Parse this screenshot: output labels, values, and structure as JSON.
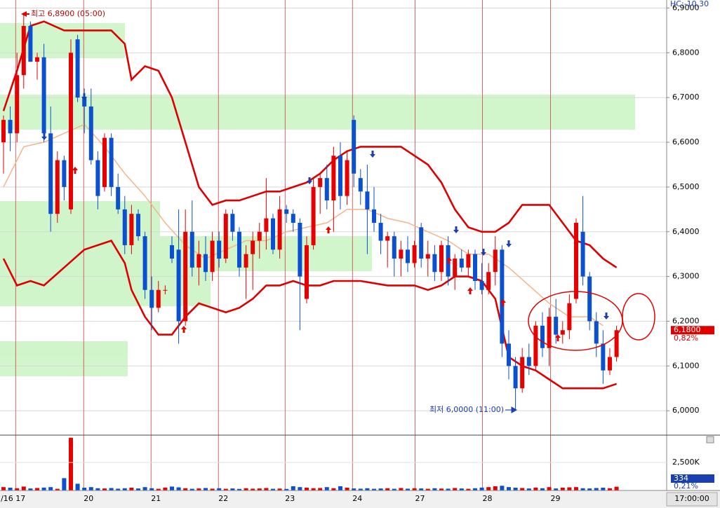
{
  "chart_data": {
    "type": "candlestick",
    "header_text": "HC:-10,30",
    "annotations": {
      "high": "최고 6,8900 (05:00)",
      "low": "최저 6,0000 (11:00)"
    },
    "last_price": {
      "value": 6.18,
      "label": "6,1800"
    },
    "last_change": "0,82%",
    "last_volume": 334,
    "volume_change": "0,21%",
    "time_label": "17:00:00",
    "ylim": [
      5.947,
      6.918
    ],
    "yticks": [
      {
        "value": 6.0,
        "label": "6,0000"
      },
      {
        "value": 6.1,
        "label": "6,1000"
      },
      {
        "value": 6.2,
        "label": "6,2000"
      },
      {
        "value": 6.3,
        "label": "6,3000"
      },
      {
        "value": 6.4,
        "label": "6,4000"
      },
      {
        "value": 6.5,
        "label": "6,5000"
      },
      {
        "value": 6.6,
        "label": "6,6000"
      },
      {
        "value": 6.7,
        "label": "6,7000"
      },
      {
        "value": 6.8,
        "label": "6,8000"
      },
      {
        "value": 6.9,
        "label": "6,9000"
      }
    ],
    "xlim": [
      -0.52,
      98.44
    ],
    "xticks": [
      {
        "value": 1.8,
        "label": "/16 17"
      },
      {
        "value": 11.9,
        "label": "20"
      },
      {
        "value": 21.9,
        "label": "21"
      },
      {
        "value": 31.9,
        "label": "22"
      },
      {
        "value": 41.8,
        "label": "23"
      },
      {
        "value": 51.8,
        "label": "24"
      },
      {
        "value": 61.1,
        "label": "27"
      },
      {
        "value": 71.1,
        "label": "28"
      },
      {
        "value": 81.2,
        "label": "29"
      }
    ],
    "up_color": "#e60000",
    "down_color": "#0a50d0",
    "open": [
      6.6,
      6.65,
      6.62,
      6.75,
      6.86,
      6.78,
      6.79,
      6.62,
      6.44,
      6.56,
      6.45,
      6.83,
      6.7,
      6.68,
      6.56,
      6.5,
      6.61,
      6.5,
      6.45,
      6.37,
      6.44,
      6.39,
      6.27,
      6.23,
      6.27,
      6.37,
      6.36,
      6.2,
      6.4,
      6.32,
      6.35,
      6.31,
      6.38,
      6.34,
      6.44,
      6.4,
      6.32,
      6.35,
      6.38,
      6.4,
      6.43,
      6.36,
      6.45,
      6.44,
      6.42,
      6.25,
      6.37,
      6.5,
      6.52,
      6.47,
      6.57,
      6.48,
      6.65,
      6.52,
      6.49,
      6.45,
      6.42,
      6.38,
      6.39,
      6.34,
      6.36,
      6.33,
      6.41,
      6.34,
      6.35,
      6.31,
      6.37,
      6.3,
      6.34,
      6.32,
      6.35,
      6.29,
      6.27,
      6.31,
      6.36,
      6.15,
      6.1,
      6.05,
      6.12,
      6.1,
      6.19,
      6.14,
      6.21,
      6.17,
      6.18,
      6.25,
      6.4,
      6.3,
      6.2,
      6.15,
      6.09,
      6.12
    ],
    "high": [
      6.66,
      6.68,
      6.8,
      6.89,
      6.87,
      6.8,
      6.82,
      6.68,
      6.58,
      6.57,
      6.83,
      6.84,
      6.72,
      6.72,
      6.58,
      6.62,
      6.62,
      6.53,
      6.48,
      6.46,
      6.45,
      6.4,
      6.3,
      6.29,
      6.28,
      6.39,
      6.45,
      6.45,
      6.47,
      6.38,
      6.39,
      6.4,
      6.4,
      6.45,
      6.45,
      6.41,
      6.37,
      6.4,
      6.42,
      6.52,
      6.44,
      6.48,
      6.46,
      6.45,
      6.43,
      6.39,
      6.52,
      6.53,
      6.55,
      6.59,
      6.6,
      6.58,
      6.66,
      6.54,
      6.55,
      6.5,
      6.44,
      6.4,
      6.4,
      6.38,
      6.39,
      6.38,
      6.42,
      6.38,
      6.37,
      6.38,
      6.39,
      6.35,
      6.36,
      6.36,
      6.36,
      6.33,
      6.33,
      6.39,
      6.37,
      6.18,
      6.12,
      6.14,
      6.15,
      6.2,
      6.22,
      6.23,
      6.25,
      6.2,
      6.26,
      6.43,
      6.48,
      6.31,
      6.22,
      6.18,
      6.14,
      6.19
    ],
    "low": [
      6.53,
      6.58,
      6.6,
      6.72,
      6.78,
      6.74,
      6.6,
      6.4,
      6.42,
      6.47,
      6.44,
      6.69,
      6.62,
      6.55,
      6.45,
      6.49,
      6.48,
      6.44,
      6.35,
      6.35,
      6.38,
      6.25,
      6.18,
      6.22,
      6.26,
      6.33,
      6.15,
      6.19,
      6.3,
      6.28,
      6.29,
      6.29,
      6.32,
      6.33,
      6.38,
      6.3,
      6.25,
      6.27,
      6.34,
      6.36,
      6.35,
      6.34,
      6.42,
      6.4,
      6.18,
      6.24,
      6.36,
      6.44,
      6.45,
      6.4,
      6.45,
      6.46,
      6.5,
      6.46,
      6.35,
      6.4,
      6.35,
      6.32,
      6.3,
      6.3,
      6.31,
      6.32,
      6.32,
      6.3,
      6.29,
      6.29,
      6.28,
      6.27,
      6.31,
      6.3,
      6.27,
      6.26,
      6.26,
      6.28,
      6.12,
      6.07,
      6.0,
      6.04,
      6.08,
      6.09,
      6.12,
      6.1,
      6.15,
      6.15,
      6.16,
      6.24,
      6.28,
      6.18,
      6.12,
      6.06,
      6.08,
      6.11
    ],
    "close": [
      6.65,
      6.62,
      6.75,
      6.86,
      6.78,
      6.79,
      6.62,
      6.44,
      6.56,
      6.5,
      6.8,
      6.7,
      6.68,
      6.56,
      6.48,
      6.61,
      6.5,
      6.45,
      6.37,
      6.44,
      6.39,
      6.27,
      6.23,
      6.27,
      6.27,
      6.34,
      6.2,
      6.4,
      6.32,
      6.35,
      6.31,
      6.38,
      6.34,
      6.44,
      6.4,
      6.32,
      6.35,
      6.38,
      6.4,
      6.43,
      6.36,
      6.45,
      6.44,
      6.42,
      6.3,
      6.37,
      6.5,
      6.52,
      6.47,
      6.57,
      6.48,
      6.56,
      6.53,
      6.49,
      6.45,
      6.42,
      6.38,
      6.39,
      6.34,
      6.36,
      6.33,
      6.37,
      6.34,
      6.35,
      6.31,
      6.37,
      6.3,
      6.34,
      6.32,
      6.35,
      6.29,
      6.27,
      6.31,
      6.36,
      6.15,
      6.1,
      6.05,
      6.12,
      6.1,
      6.19,
      6.14,
      6.21,
      6.17,
      6.18,
      6.24,
      6.42,
      6.3,
      6.2,
      6.15,
      6.09,
      6.12,
      6.18
    ],
    "volume": [
      300,
      250,
      200,
      350,
      180,
      220,
      260,
      300,
      150,
      1100,
      4700,
      600,
      250,
      300,
      200,
      180,
      220,
      160,
      200,
      250,
      180,
      300,
      200,
      150,
      260,
      350,
      280,
      200,
      150,
      180,
      220,
      160,
      200,
      150,
      180,
      140,
      200,
      160,
      180,
      220,
      150,
      170,
      140,
      380,
      300,
      250,
      200,
      220,
      300,
      200,
      380,
      250,
      180,
      160,
      200,
      150,
      180,
      200,
      150,
      220,
      160,
      200,
      180,
      150,
      200,
      170,
      160,
      220,
      180,
      150,
      200,
      260,
      300,
      380,
      420,
      300,
      250,
      220,
      180,
      260,
      200,
      300,
      180,
      250,
      280,
      300,
      200,
      180,
      220,
      250,
      200,
      334
    ],
    "vlim": [
      0,
      5000
    ],
    "vticks": [
      {
        "value": 2500,
        "label": "2,500K"
      }
    ],
    "bands": [
      {
        "color": "#dd0000",
        "x": [
          0,
          2,
          4,
          6,
          9,
          12,
          16,
          18,
          19,
          21,
          23,
          25,
          27,
          29,
          31,
          33,
          35,
          37,
          39,
          41,
          43,
          45,
          47,
          49,
          51,
          53,
          55,
          57,
          59,
          61,
          63,
          65,
          67,
          69,
          71,
          73,
          75,
          77,
          79,
          81,
          83,
          85,
          87,
          89,
          91
        ],
        "values": [
          6.67,
          6.76,
          6.86,
          6.87,
          6.85,
          6.85,
          6.85,
          6.82,
          6.74,
          6.77,
          6.76,
          6.7,
          6.6,
          6.5,
          6.46,
          6.47,
          6.47,
          6.48,
          6.49,
          6.49,
          6.5,
          6.51,
          6.53,
          6.56,
          6.58,
          6.59,
          6.59,
          6.59,
          6.59,
          6.57,
          6.55,
          6.51,
          6.45,
          6.41,
          6.4,
          6.4,
          6.42,
          6.46,
          6.46,
          6.46,
          6.42,
          6.38,
          6.37,
          6.34,
          6.32
        ]
      },
      {
        "color": "#f5b48a",
        "x": [
          0,
          3,
          6,
          9,
          12,
          15,
          18,
          21,
          24,
          27,
          30,
          33,
          36,
          39,
          42,
          45,
          48,
          51,
          54,
          57,
          60,
          63,
          66,
          69,
          72,
          75,
          78,
          81,
          84,
          87,
          89
        ],
        "values": [
          6.5,
          6.59,
          6.6,
          6.62,
          6.64,
          6.59,
          6.53,
          6.48,
          6.42,
          6.37,
          6.34,
          6.36,
          6.38,
          6.38,
          6.4,
          6.41,
          6.42,
          6.45,
          6.45,
          6.43,
          6.42,
          6.4,
          6.38,
          6.35,
          6.35,
          6.32,
          6.28,
          6.24,
          6.21,
          6.21,
          6.19
        ]
      },
      {
        "color": "#dd0000",
        "x": [
          0,
          2,
          4,
          6,
          9,
          12,
          16,
          18,
          19,
          21,
          23,
          25,
          27,
          29,
          31,
          33,
          35,
          37,
          39,
          41,
          43,
          45,
          47,
          49,
          51,
          53,
          55,
          57,
          59,
          61,
          63,
          65,
          67,
          69,
          71,
          73,
          75,
          77,
          79,
          81,
          83,
          85,
          87,
          89,
          91
        ],
        "values": [
          6.34,
          6.28,
          6.29,
          6.28,
          6.32,
          6.36,
          6.38,
          6.33,
          6.27,
          6.21,
          6.17,
          6.17,
          6.21,
          6.24,
          6.23,
          6.22,
          6.23,
          6.25,
          6.28,
          6.28,
          6.29,
          6.28,
          6.28,
          6.29,
          6.29,
          6.29,
          6.285,
          6.28,
          6.28,
          6.28,
          6.27,
          6.28,
          6.3,
          6.3,
          6.29,
          6.25,
          6.12,
          6.1,
          6.09,
          6.07,
          6.05,
          6.05,
          6.05,
          6.05,
          6.06
        ]
      }
    ]
  }
}
